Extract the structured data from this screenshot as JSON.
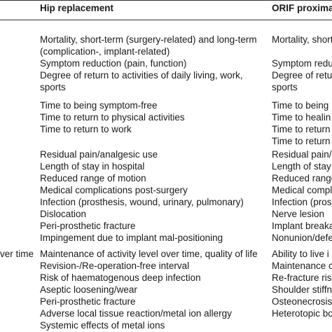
{
  "table": {
    "header": [
      "Hip replacement",
      "ORIF proxima"
    ],
    "groups": [
      {
        "rows": [
          [
            "Mortality, short-term (surgery-related) and long-term",
            "Mortality, short-t"
          ],
          [
            "(complication-, implant-related)",
            null
          ],
          [
            "Symptom reduction (pain, function)",
            "Symptom reductio"
          ],
          [
            "Degree of return to activities of daily living, work,",
            "Degree of return to"
          ],
          [
            "sports",
            "sports"
          ]
        ]
      },
      {
        "rows": [
          [
            "Time to being symptom-free",
            "Time to being"
          ],
          [
            "Time to return to physical activities",
            "Time to healin"
          ],
          [
            "Time to return to work",
            "Time to return t"
          ],
          [
            null,
            "Time to return t"
          ]
        ]
      },
      {
        "rows": [
          [
            "Residual pain/analgesic use",
            "Residual pain/a"
          ],
          [
            "Length of stay in hospital",
            "Length of stay i"
          ],
          [
            "Reduced range of motion",
            "Reduced range"
          ],
          [
            "Medical complications post-surgery",
            "Medical compl"
          ],
          [
            "Infection (prosthesis, wound, urinary, pulmonary)",
            "Infection (pros"
          ],
          [
            "Dislocation",
            "Nerve lesion"
          ],
          [
            "Peri-prosthetic fracture",
            "Implant breaka"
          ],
          [
            "Impingement due to implant mal-positioning",
            "Nonunion/defe"
          ]
        ]
      },
      {
        "label": "ver time",
        "rows": [
          [
            "Maintenance of activity level over time, quality of life",
            "Ability to live i"
          ],
          [
            "Revision-/Re-operation-free interval",
            "Maintenance c"
          ],
          [
            "Risk of haematogenous deep infection",
            "Re-fracture risk"
          ],
          [
            "Aseptic loosening/wear",
            "Shoulder stiffn"
          ],
          [
            "Peri-prosthetic fracture",
            "Osteonecrosis"
          ],
          [
            "Adverse local tissue reaction/metal ion allergy",
            "Heterotopic bo"
          ],
          [
            "Systemic effects of metal ions",
            null
          ]
        ]
      }
    ]
  }
}
